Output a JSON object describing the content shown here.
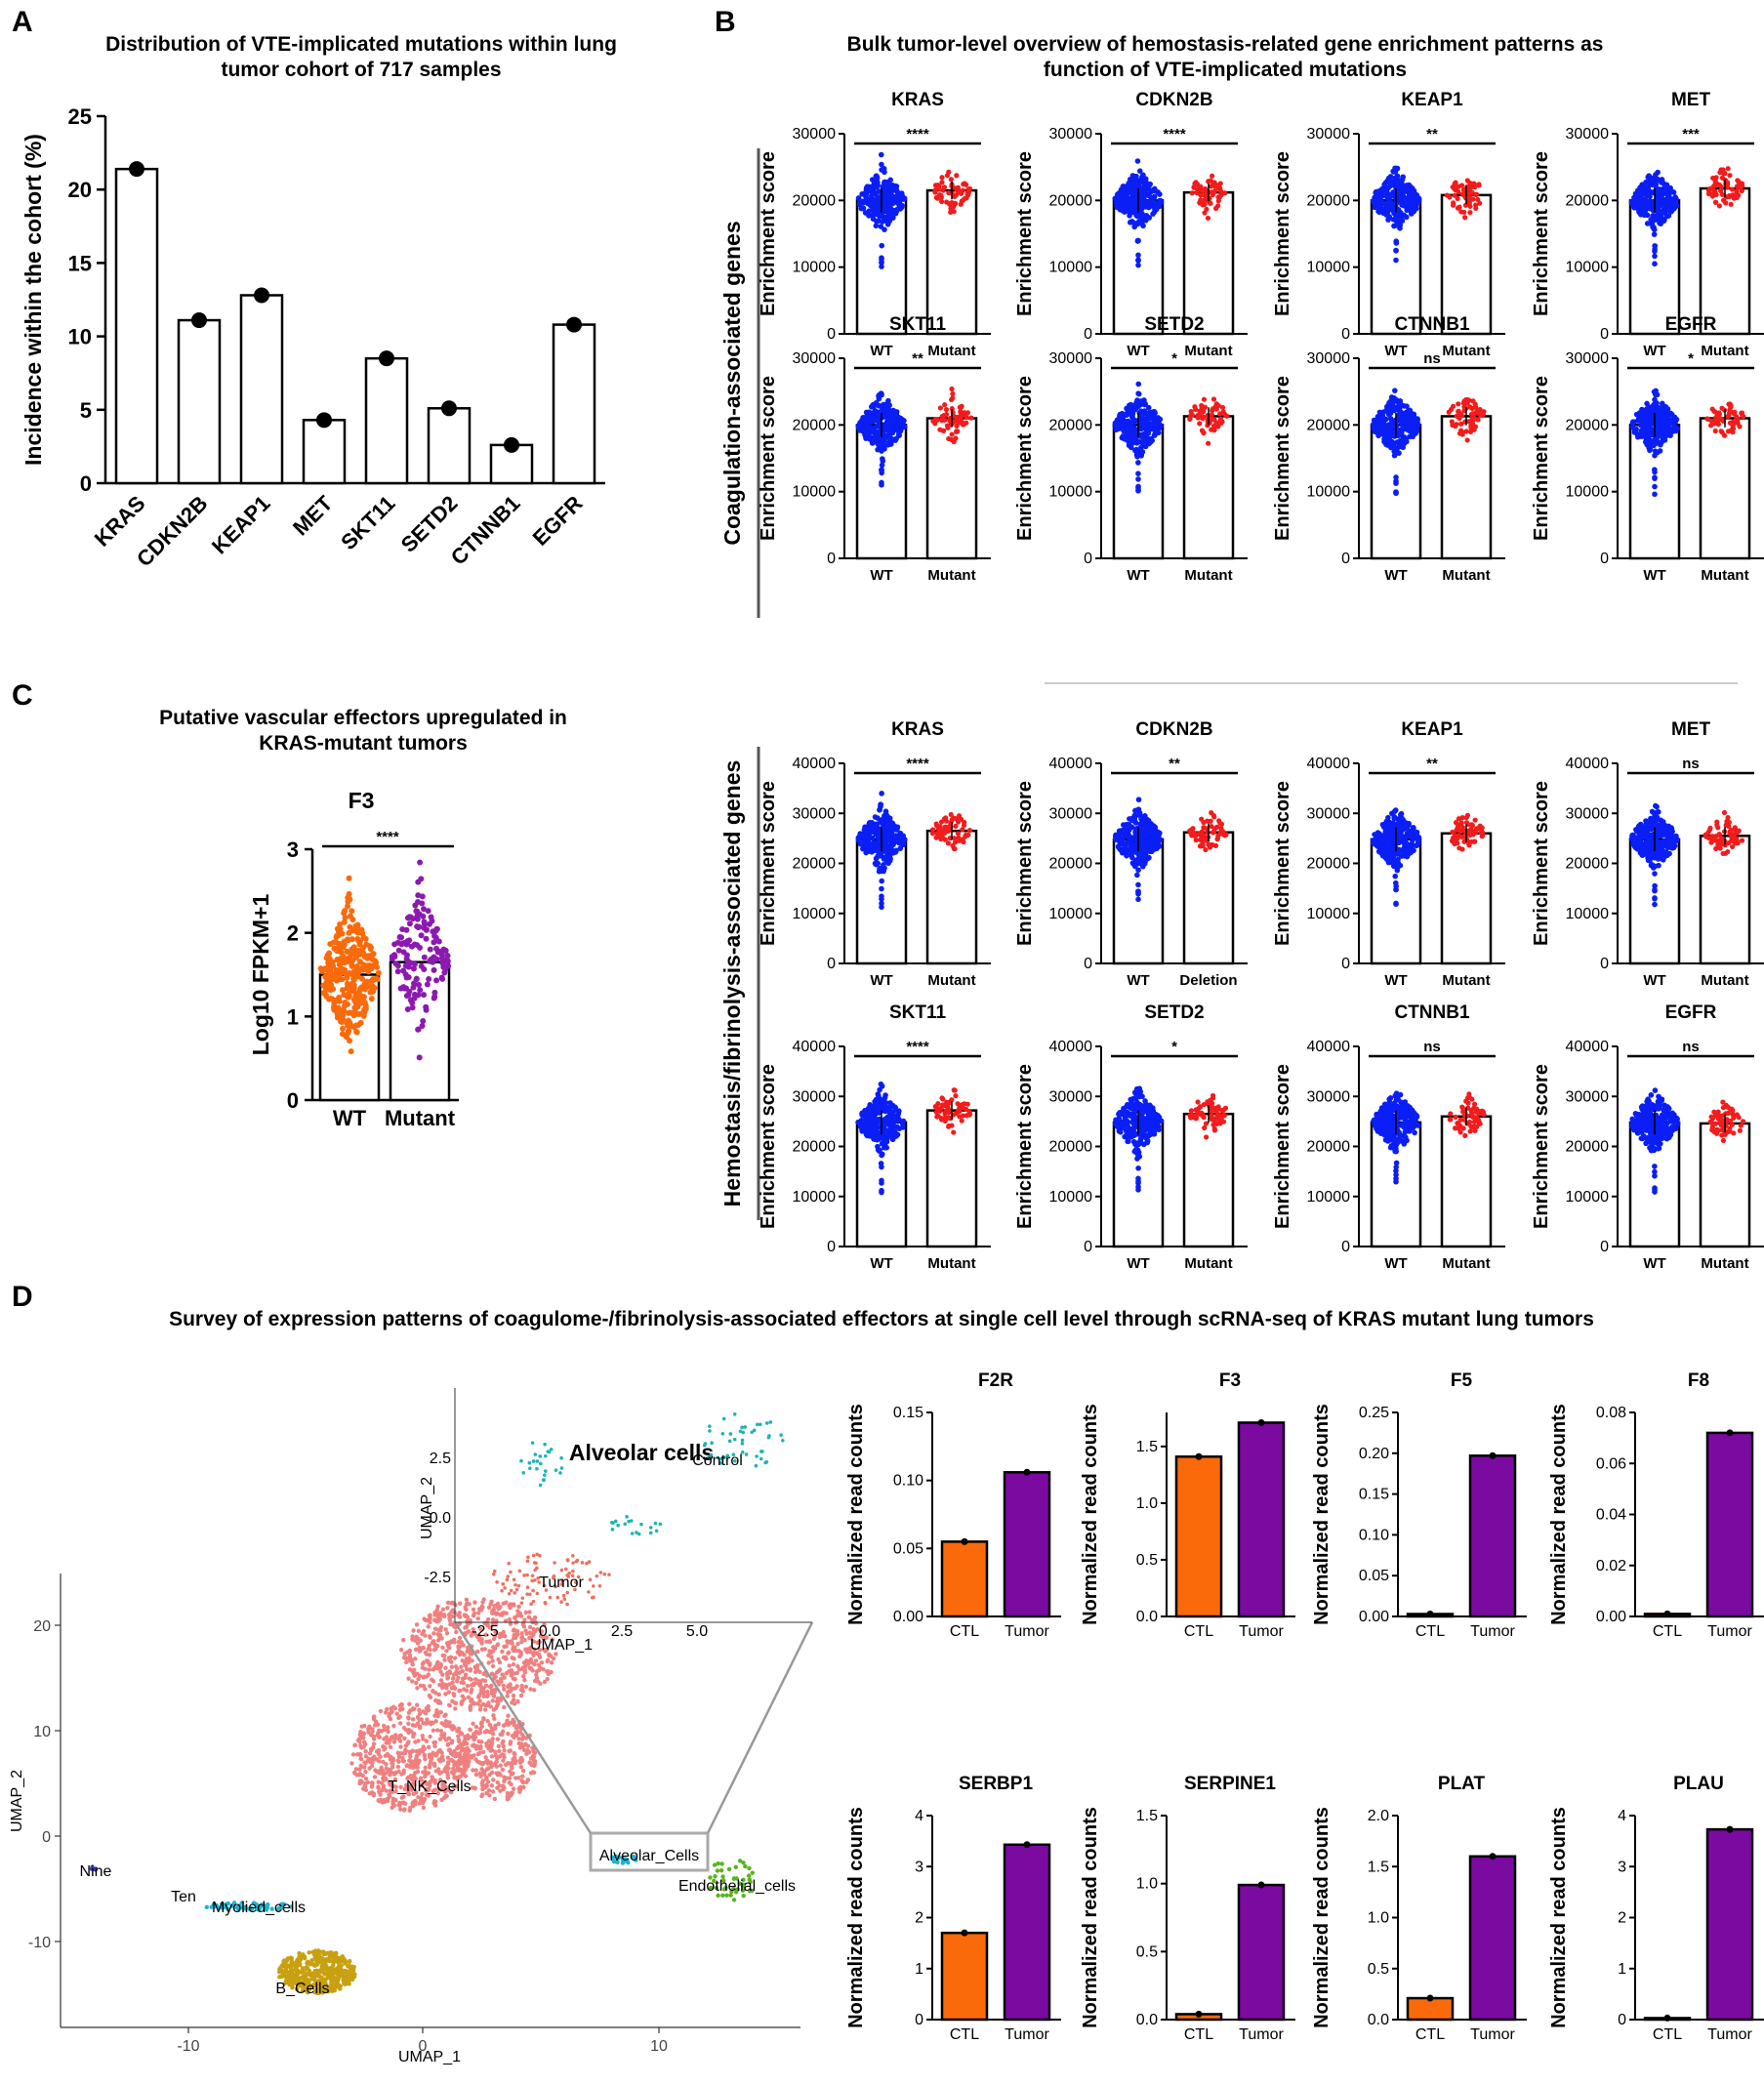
{
  "panel_labels": {
    "a": "A",
    "b": "B",
    "c": "C",
    "d": "D"
  },
  "colors": {
    "wt": "#0a1ef5",
    "mutant": "#f21c1c",
    "ctl": "#fa6a0a",
    "tumor": "#7a0aa0",
    "f3_wt": "#fa6a0a",
    "f3_mut": "#8c1ab0"
  },
  "chart_data": [
    {
      "id": "A",
      "type": "bar",
      "title": "Distribution of VTE-implicated mutations within lung tumor cohort of 717 samples",
      "ylabel": "Incidence within the cohort (%)",
      "categories": [
        "KRAS",
        "CDKN2B",
        "KEAP1",
        "MET",
        "SKT11",
        "SETD2",
        "CTNNB1",
        "EGFR"
      ],
      "values": [
        21.4,
        11.1,
        12.8,
        4.3,
        8.5,
        5.1,
        2.6,
        10.8
      ],
      "ylim": [
        0,
        25
      ],
      "yticks": [
        "0",
        "5",
        "10",
        "15",
        "20",
        "25"
      ]
    },
    {
      "id": "B",
      "type": "scatter",
      "title": "Bulk tumor-level overview of hemostasis-related gene enrichment patterns as function of VTE-implicated mutations",
      "ylabel": "Enrichment score",
      "groups": [
        {
          "label": "Coagulation-associated genes",
          "ylim": [
            0,
            30000
          ],
          "yticks": [
            "0",
            "10000",
            "20000",
            "30000"
          ],
          "panels": [
            {
              "gene": "KRAS",
              "sig": "****",
              "wt_mean": 20000,
              "mut_mean": 21500,
              "x": [
                "WT",
                "Mutant"
              ]
            },
            {
              "gene": "CDKN2B",
              "sig": "****",
              "wt_mean": 20000,
              "mut_mean": 21200,
              "x": [
                "WT",
                "Mutant"
              ]
            },
            {
              "gene": "KEAP1",
              "sig": "**",
              "wt_mean": 20000,
              "mut_mean": 20800,
              "x": [
                "WT",
                "Mutant"
              ]
            },
            {
              "gene": "MET",
              "sig": "***",
              "wt_mean": 20000,
              "mut_mean": 21800,
              "x": [
                "WT",
                "Mutant"
              ]
            },
            {
              "gene": "SKT11",
              "sig": "**",
              "wt_mean": 20000,
              "mut_mean": 21000,
              "x": [
                "WT",
                "Mutant"
              ]
            },
            {
              "gene": "SETD2",
              "sig": "*",
              "wt_mean": 20000,
              "mut_mean": 21300,
              "x": [
                "WT",
                "Mutant"
              ]
            },
            {
              "gene": "CTNNB1",
              "sig": "ns",
              "wt_mean": 20000,
              "mut_mean": 21300,
              "x": [
                "WT",
                "Mutant"
              ]
            },
            {
              "gene": "EGFR",
              "sig": "*",
              "wt_mean": 20000,
              "mut_mean": 21000,
              "x": [
                "WT",
                "Mutant"
              ]
            }
          ]
        },
        {
          "label": "Hemostasis/fibrinolysis-associated genes",
          "ylim": [
            0,
            40000
          ],
          "yticks": [
            "0",
            "10000",
            "20000",
            "30000",
            "40000"
          ],
          "panels": [
            {
              "gene": "KRAS",
              "sig": "****",
              "wt_mean": 24800,
              "mut_mean": 26500,
              "x": [
                "WT",
                "Mutant"
              ]
            },
            {
              "gene": "CDKN2B",
              "sig": "**",
              "wt_mean": 24800,
              "mut_mean": 26200,
              "x": [
                "WT",
                "Deletion"
              ]
            },
            {
              "gene": "KEAP1",
              "sig": "**",
              "wt_mean": 24800,
              "mut_mean": 26000,
              "x": [
                "WT",
                "Mutant"
              ]
            },
            {
              "gene": "MET",
              "sig": "ns",
              "wt_mean": 24800,
              "mut_mean": 25500,
              "x": [
                "WT",
                "Mutant"
              ]
            },
            {
              "gene": "SKT11",
              "sig": "****",
              "wt_mean": 24800,
              "mut_mean": 27200,
              "x": [
                "WT",
                "Mutant"
              ]
            },
            {
              "gene": "SETD2",
              "sig": "*",
              "wt_mean": 24800,
              "mut_mean": 26500,
              "x": [
                "WT",
                "Mutant"
              ]
            },
            {
              "gene": "CTNNB1",
              "sig": "ns",
              "wt_mean": 24800,
              "mut_mean": 26000,
              "x": [
                "WT",
                "Mutant"
              ]
            },
            {
              "gene": "EGFR",
              "sig": "ns",
              "wt_mean": 24800,
              "mut_mean": 24600,
              "x": [
                "WT",
                "Mutant"
              ]
            }
          ]
        }
      ]
    },
    {
      "id": "C",
      "type": "scatter",
      "title": "Putative vascular effectors upregulated in KRAS-mutant tumors",
      "subtitle": "F3",
      "ylabel": "Log10 FPKM+1",
      "categories": [
        "WT",
        "Mutant"
      ],
      "means": [
        1.5,
        1.65
      ],
      "sig": "****",
      "ylim": [
        0,
        3
      ],
      "yticks": [
        "0",
        "1",
        "2",
        "3"
      ]
    },
    {
      "id": "D",
      "type": "bar",
      "title": "Survey of expression patterns of coagulome-/fibrinolysis-associated effectors at single cell level through scRNA-seq of KRAS mutant lung tumors",
      "ylabel": "Normalized read counts",
      "categories": [
        "CTL",
        "Tumor"
      ],
      "panels": [
        {
          "gene": "F2R",
          "values": [
            0.055,
            0.106
          ],
          "ylim": [
            0,
            0.15
          ],
          "yticks": [
            "0.00",
            "0.05",
            "0.10",
            "0.15"
          ]
        },
        {
          "gene": "F3",
          "values": [
            1.41,
            1.71
          ],
          "ylim": [
            0,
            1.8
          ],
          "yticks": [
            "0.0",
            "0.5",
            "1.0",
            "1.5"
          ]
        },
        {
          "gene": "F5",
          "values": [
            0.003,
            0.197
          ],
          "ylim": [
            0,
            0.25
          ],
          "yticks": [
            "0.00",
            "0.05",
            "0.10",
            "0.15",
            "0.20",
            "0.25"
          ]
        },
        {
          "gene": "F8",
          "values": [
            0.001,
            0.072
          ],
          "ylim": [
            0,
            0.08
          ],
          "yticks": [
            "0.00",
            "0.02",
            "0.04",
            "0.06",
            "0.08"
          ]
        },
        {
          "gene": "SERBP1",
          "values": [
            1.7,
            3.43
          ],
          "ylim": [
            0,
            4
          ],
          "yticks": [
            "0",
            "1",
            "2",
            "3",
            "4"
          ]
        },
        {
          "gene": "SERPINE1",
          "values": [
            0.04,
            0.99
          ],
          "ylim": [
            0,
            1.5
          ],
          "yticks": [
            "0.0",
            "0.5",
            "1.0",
            "1.5"
          ]
        },
        {
          "gene": "PLAT",
          "values": [
            0.21,
            1.6
          ],
          "ylim": [
            0,
            2.0
          ],
          "yticks": [
            "0.0",
            "0.5",
            "1.0",
            "1.5",
            "2.0"
          ]
        },
        {
          "gene": "PLAU",
          "values": [
            0.03,
            3.73
          ],
          "ylim": [
            0,
            4
          ],
          "yticks": [
            "0",
            "1",
            "2",
            "3",
            "4"
          ]
        }
      ]
    },
    {
      "id": "D-umap",
      "type": "scatter",
      "xlabel": "UMAP_1",
      "ylabel": "UMAP_2",
      "xticks": [
        "-10",
        "0",
        "10"
      ],
      "yticks": [
        "20",
        "10",
        "0",
        "-10"
      ],
      "clusters": [
        {
          "label": "T_NK_Cells",
          "color": "#f08080"
        },
        {
          "label": "Alveolar_Cells",
          "color": "#1eb4d2"
        },
        {
          "label": "Endothelial_cells",
          "color": "#5ab420"
        },
        {
          "label": "Myolied_cells",
          "color": "#1eb4d2"
        },
        {
          "label": "B_Cells",
          "color": "#c8a010"
        },
        {
          "label": "Nine",
          "color": "#4040c0"
        },
        {
          "label": "Ten",
          "color": "#808080"
        }
      ],
      "inset": {
        "title": "Alveolar cells",
        "xlabel": "UMAP_1",
        "ylabel": "UMAP_2",
        "xticks": [
          "-2.5",
          "0.0",
          "2.5",
          "5.0"
        ],
        "yticks": [
          "2.5",
          "0.0",
          "-2.5"
        ],
        "groups": [
          {
            "label": "Control",
            "color": "#1eb4b4"
          },
          {
            "label": "Tumor",
            "color": "#f07060"
          }
        ]
      }
    }
  ]
}
